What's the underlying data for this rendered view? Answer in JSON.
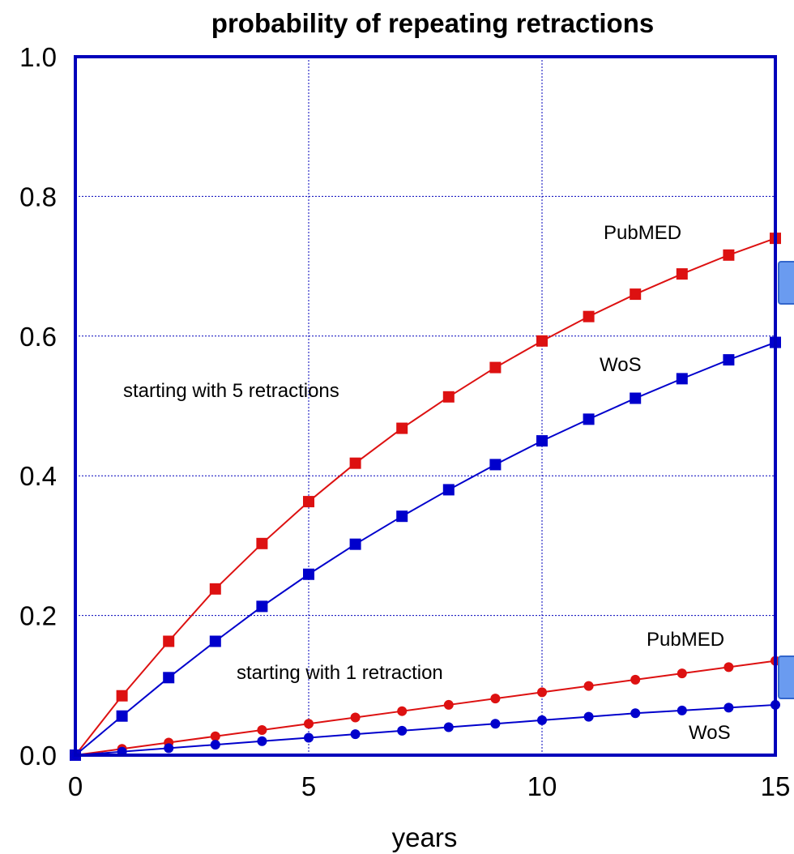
{
  "chart_data": {
    "type": "line",
    "title": "probability of repeating retractions",
    "xlabel": "years",
    "ylabel": "",
    "xlim": [
      0,
      15
    ],
    "ylim": [
      0.0,
      1.0
    ],
    "x_ticks": [
      "0",
      "5",
      "10",
      "15"
    ],
    "y_ticks": [
      "0.0",
      "0.2",
      "0.4",
      "0.6",
      "0.8",
      "1.0"
    ],
    "grid": true,
    "x": [
      0,
      1,
      2,
      3,
      4,
      5,
      6,
      7,
      8,
      9,
      10,
      11,
      12,
      13,
      14,
      15
    ],
    "series": [
      {
        "name": "PubMED",
        "group": "starting with 5 retractions",
        "color": "#dd1111",
        "marker": "square",
        "values": [
          0.0,
          0.085,
          0.163,
          0.238,
          0.303,
          0.363,
          0.418,
          0.468,
          0.513,
          0.555,
          0.593,
          0.628,
          0.66,
          0.689,
          0.716,
          0.74
        ]
      },
      {
        "name": "WoS",
        "group": "starting with 5 retractions",
        "color": "#0000cc",
        "marker": "square",
        "values": [
          0.0,
          0.056,
          0.111,
          0.163,
          0.213,
          0.259,
          0.302,
          0.342,
          0.38,
          0.416,
          0.45,
          0.481,
          0.511,
          0.539,
          0.566,
          0.591
        ]
      },
      {
        "name": "PubMED",
        "group": "starting with 1 retraction",
        "color": "#dd1111",
        "marker": "circle",
        "values": [
          0.0,
          0.009,
          0.018,
          0.027,
          0.036,
          0.045,
          0.054,
          0.063,
          0.072,
          0.081,
          0.09,
          0.099,
          0.108,
          0.117,
          0.126,
          0.135
        ]
      },
      {
        "name": "WoS",
        "group": "starting with 1 retraction",
        "color": "#0000cc",
        "marker": "circle",
        "values": [
          0.0,
          0.005,
          0.01,
          0.015,
          0.02,
          0.025,
          0.03,
          0.035,
          0.04,
          0.045,
          0.05,
          0.055,
          0.06,
          0.064,
          0.068,
          0.072
        ]
      }
    ],
    "annotations": [
      {
        "text": "starting with 5 retractions",
        "color": "#000000"
      },
      {
        "text": "starting with 1 retraction",
        "color": "#000000"
      },
      {
        "text": "PubMED",
        "color": "#cc1111"
      },
      {
        "text": "WoS",
        "color": "#0000aa"
      },
      {
        "text": "PubMED",
        "color": "#cc1111"
      },
      {
        "text": "WoS",
        "color": "#0000aa"
      }
    ],
    "frame_color": "#0000bb",
    "grid_color": "#0000bb"
  }
}
